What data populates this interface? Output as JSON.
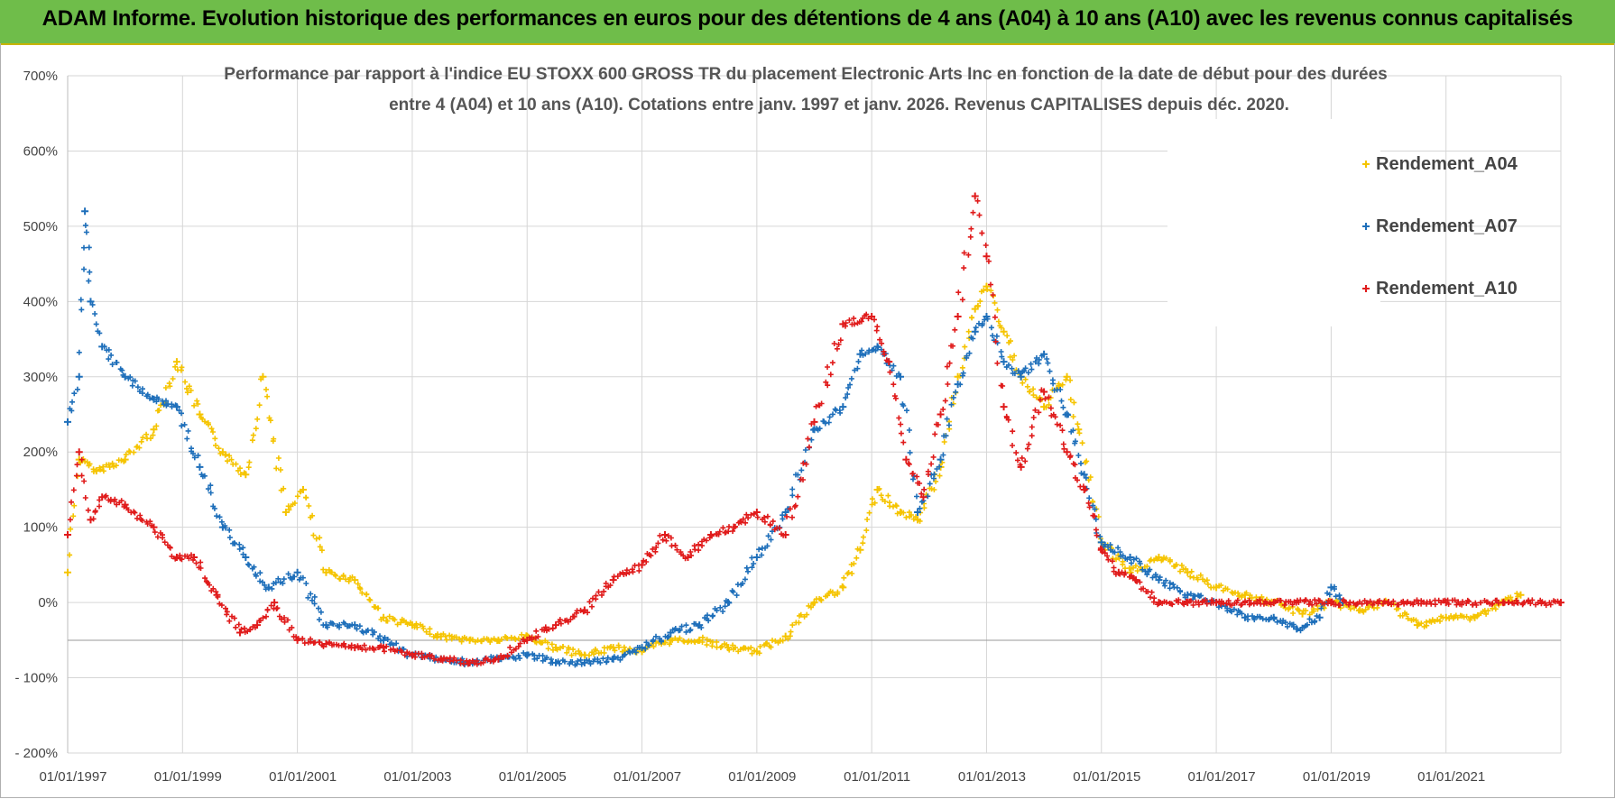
{
  "header": {
    "title": "ADAM Informe. Evolution historique des performances en euros pour des détentions de 4 ans (A04) à 10 ans (A10) avec les revenus connus capitalisés"
  },
  "colors": {
    "A04": "#f5c400",
    "A07": "#1e6fba",
    "A10": "#e01b1b",
    "band": "#6fbd4a"
  },
  "chart_data": {
    "type": "scatter",
    "title_line1": "Performance par rapport à l'indice EU STOXX 600 GROSS TR  du placement Electronic Arts Inc en fonction de la date de début pour des durées",
    "title_line2": "entre 4 (A04) et 10 ans (A10).  Cotations entre janv. 1997 et janv. 2026. Revenus CAPITALISES depuis déc. 2020.",
    "xlabel": "",
    "ylabel": "",
    "xlim": [
      1997.0,
      2023.0
    ],
    "ylim": [
      -200,
      700
    ],
    "y_ticks": [
      {
        "v": 700,
        "label": "700%"
      },
      {
        "v": 600,
        "label": "600%"
      },
      {
        "v": 500,
        "label": "500%"
      },
      {
        "v": 400,
        "label": "400%"
      },
      {
        "v": 300,
        "label": "300%"
      },
      {
        "v": 200,
        "label": "200%"
      },
      {
        "v": 100,
        "label": "100%"
      },
      {
        "v": 0,
        "label": "0%"
      },
      {
        "v": -100,
        "label": "- 100%"
      },
      {
        "v": -200,
        "label": "- 200%"
      }
    ],
    "x_ticks": [
      {
        "v": 1997,
        "label": "01/01/1997"
      },
      {
        "v": 1999,
        "label": "01/01/1999"
      },
      {
        "v": 2001,
        "label": "01/01/2001"
      },
      {
        "v": 2003,
        "label": "01/01/2003"
      },
      {
        "v": 2005,
        "label": "01/01/2005"
      },
      {
        "v": 2007,
        "label": "01/01/2007"
      },
      {
        "v": 2009,
        "label": "01/01/2009"
      },
      {
        "v": 2011,
        "label": "01/01/2011"
      },
      {
        "v": 2013,
        "label": "01/01/2013"
      },
      {
        "v": 2015,
        "label": "01/01/2015"
      },
      {
        "v": 2017,
        "label": "01/01/2017"
      },
      {
        "v": 2019,
        "label": "01/01/2019"
      },
      {
        "v": 2021,
        "label": "01/01/2021"
      }
    ],
    "legend_position": "top-right",
    "series": [
      {
        "name": "Rendement_A04",
        "color_key": "A04",
        "x": [
          1997.0,
          1997.2,
          1997.5,
          1998.0,
          1998.5,
          1998.9,
          1999.3,
          1999.7,
          2000.1,
          2000.4,
          2000.8,
          2001.1,
          2001.5,
          2002.0,
          2002.5,
          2003.0,
          2003.5,
          2004.0,
          2004.5,
          2005.0,
          2005.5,
          2006.0,
          2006.5,
          2007.0,
          2007.5,
          2008.0,
          2008.5,
          2009.0,
          2009.5,
          2010.0,
          2010.5,
          2010.8,
          2011.1,
          2011.5,
          2011.8,
          2012.2,
          2012.5,
          2012.8,
          2013.0,
          2013.3,
          2013.6,
          2014.0,
          2014.4,
          2014.6,
          2015.0,
          2015.5,
          2016.0,
          2016.5,
          2017.0,
          2017.5,
          2018.0,
          2018.5,
          2019.0,
          2019.5,
          2020.0,
          2020.5,
          2021.0,
          2021.5,
          2022.0,
          2022.3
        ],
        "y": [
          40,
          190,
          175,
          190,
          230,
          320,
          250,
          200,
          170,
          300,
          120,
          150,
          40,
          30,
          -20,
          -30,
          -45,
          -50,
          -50,
          -45,
          -60,
          -70,
          -60,
          -65,
          -50,
          -50,
          -60,
          -65,
          -45,
          0,
          20,
          70,
          150,
          120,
          110,
          180,
          300,
          390,
          420,
          360,
          300,
          260,
          300,
          230,
          80,
          40,
          60,
          40,
          20,
          10,
          0,
          -15,
          0,
          -10,
          0,
          -30,
          -20,
          -20,
          0,
          10
        ]
      },
      {
        "name": "Rendement_A07",
        "color_key": "A07",
        "x": [
          1997.0,
          1997.2,
          1997.3,
          1997.4,
          1997.6,
          1998.0,
          1998.5,
          1998.9,
          1999.3,
          1999.7,
          2000.1,
          2000.5,
          2001.0,
          2001.5,
          2002.0,
          2002.5,
          2003.0,
          2003.5,
          2004.0,
          2004.5,
          2005.0,
          2005.5,
          2006.0,
          2006.5,
          2007.0,
          2007.5,
          2008.0,
          2008.5,
          2009.0,
          2009.5,
          2010.0,
          2010.5,
          2010.8,
          2011.1,
          2011.5,
          2011.8,
          2012.2,
          2012.5,
          2012.8,
          2013.0,
          2013.3,
          2013.6,
          2014.0,
          2014.4,
          2014.7,
          2015.0,
          2015.5,
          2016.0,
          2016.5,
          2017.0,
          2017.5,
          2018.0,
          2018.4,
          2018.8,
          2019.0,
          2019.2
        ],
        "y": [
          240,
          300,
          520,
          400,
          340,
          300,
          270,
          260,
          180,
          100,
          60,
          20,
          40,
          -30,
          -30,
          -50,
          -70,
          -75,
          -80,
          -75,
          -70,
          -80,
          -80,
          -75,
          -60,
          -40,
          -30,
          0,
          60,
          120,
          230,
          260,
          330,
          340,
          300,
          120,
          190,
          290,
          360,
          380,
          320,
          300,
          330,
          250,
          170,
          80,
          60,
          30,
          10,
          0,
          -20,
          -20,
          -35,
          -20,
          20,
          0
        ]
      },
      {
        "name": "Rendement_A10",
        "color_key": "A10",
        "x": [
          1997.0,
          1997.2,
          1997.4,
          1997.6,
          1998.0,
          1998.5,
          1998.9,
          1999.2,
          1999.6,
          2000.0,
          2000.3,
          2000.6,
          2001.0,
          2001.5,
          2002.0,
          2002.5,
          2003.0,
          2003.5,
          2004.0,
          2004.5,
          2005.0,
          2005.5,
          2006.0,
          2006.5,
          2007.0,
          2007.4,
          2007.8,
          2008.2,
          2008.6,
          2009.0,
          2009.5,
          2010.0,
          2010.5,
          2011.0,
          2011.3,
          2011.6,
          2011.9,
          2012.2,
          2012.5,
          2012.8,
          2013.0,
          2013.3,
          2013.6,
          2014.0,
          2014.4,
          2014.7,
          2015.0,
          2015.3,
          2015.6,
          2016.0,
          2016.5,
          2017.0,
          2018.0,
          2019.0,
          2020.0,
          2021.0,
          2022.0,
          2023.0
        ],
        "y": [
          90,
          200,
          110,
          140,
          130,
          100,
          60,
          60,
          10,
          -40,
          -30,
          0,
          -50,
          -55,
          -60,
          -60,
          -70,
          -75,
          -80,
          -75,
          -50,
          -30,
          -10,
          30,
          50,
          90,
          60,
          90,
          100,
          120,
          90,
          240,
          370,
          380,
          320,
          190,
          140,
          250,
          380,
          540,
          460,
          260,
          180,
          280,
          200,
          150,
          70,
          40,
          30,
          0,
          0,
          0,
          0,
          0,
          0,
          0,
          0,
          0
        ]
      }
    ]
  }
}
